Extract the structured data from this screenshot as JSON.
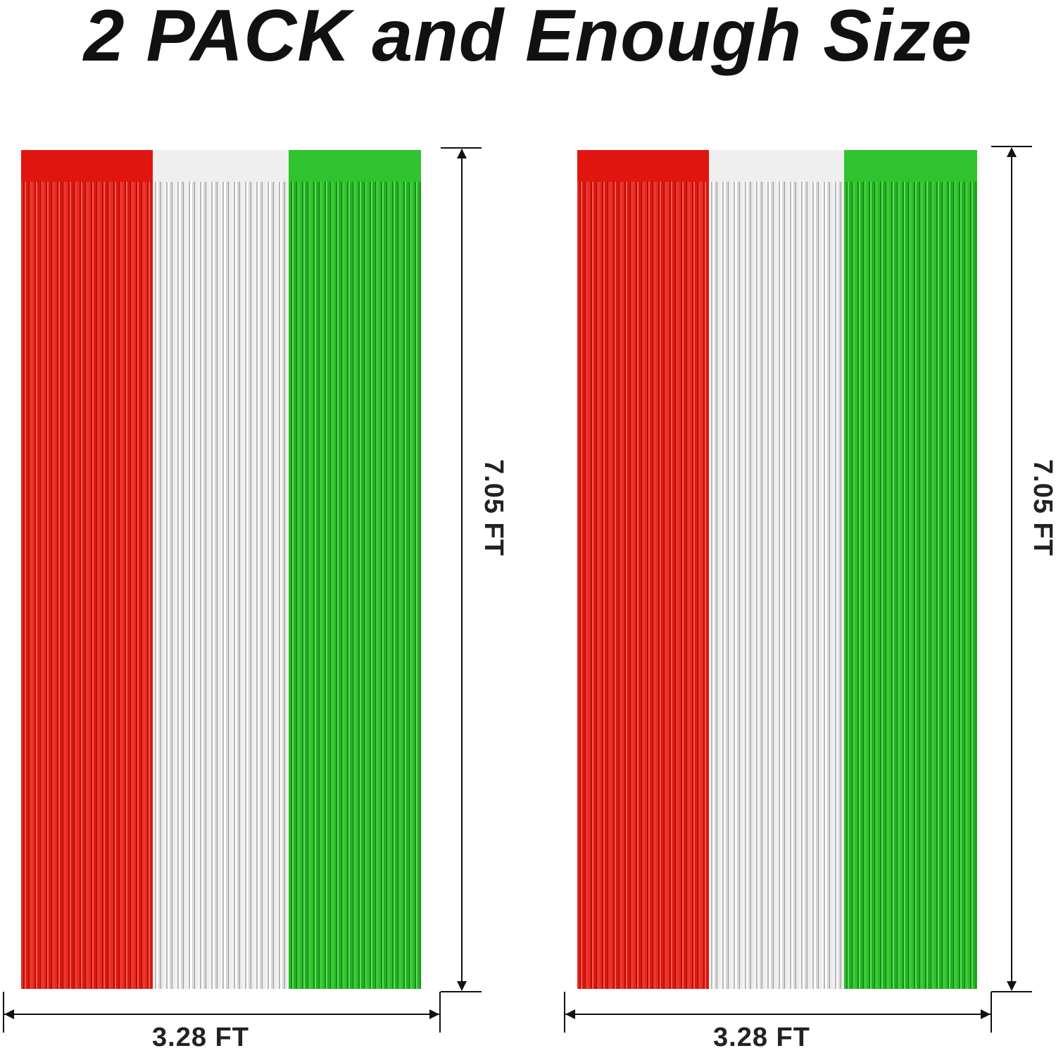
{
  "title": "2 PACK and Enough Size",
  "curtains": [
    {
      "colors": [
        "#e0150f",
        "#efefef",
        "#2fc330"
      ],
      "height_label": "7.05 FT",
      "width_label": "3.28 FT"
    },
    {
      "colors": [
        "#e0150f",
        "#efefef",
        "#2fc330"
      ],
      "height_label": "7.05 FT",
      "width_label": "3.28 FT"
    }
  ]
}
